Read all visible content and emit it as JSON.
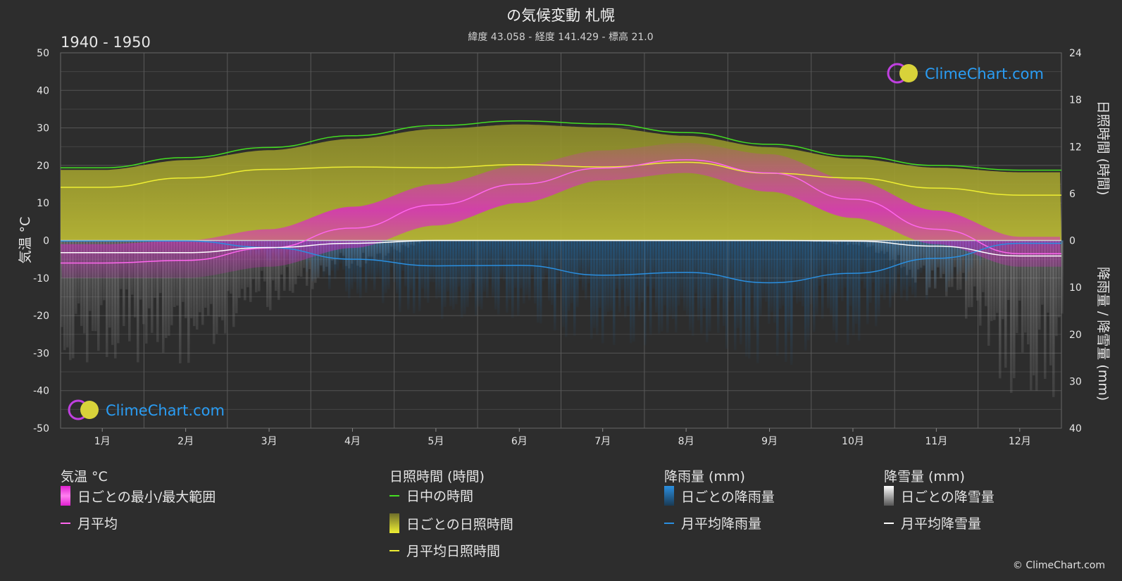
{
  "title": "の気候変動 札幌",
  "subtitle": "緯度 43.058 - 経度 141.429 - 標高 21.0",
  "period": "1940 - 1950",
  "left_axis_label": "気温 °C",
  "right_axis_label_top": "日照時間 (時間)",
  "right_axis_label_bottom": "降雨量 / 降雪量 (mm)",
  "watermark": "ClimeChart.com",
  "copyright": "© ClimeChart.com",
  "colors": {
    "background": "#2d2d2d",
    "daylight": "#44dd22",
    "sunshine": "#eeee33",
    "sunshine_band": "#a9a83a",
    "temp_range": "#e020d0",
    "temp_avg": "#ff66ee",
    "rain": "#2a8fe0",
    "snow": "#ffffff",
    "watermark_text": "#2a9df4"
  },
  "chart_data": {
    "type": "line",
    "x": [
      "1月",
      "2月",
      "3月",
      "4月",
      "5月",
      "6月",
      "7月",
      "8月",
      "9月",
      "10月",
      "11月",
      "12月"
    ],
    "left_axis": {
      "label": "気温 °C",
      "range": [
        -50,
        50
      ],
      "ticks": [
        50,
        40,
        30,
        20,
        10,
        0,
        -10,
        -20,
        -30,
        -40,
        -50
      ]
    },
    "right_axis_sunshine": {
      "label": "日照時間 (時間)",
      "range": [
        0,
        24
      ],
      "ticks": [
        24,
        18,
        12,
        6,
        0
      ]
    },
    "right_axis_precip": {
      "label": "降雨量 / 降雪量 (mm)",
      "range": [
        0,
        40
      ],
      "ticks": [
        0,
        10,
        20,
        30,
        40
      ]
    },
    "grid": true,
    "series": [
      {
        "name": "日中の時間",
        "unit": "時間",
        "values": [
          9.3,
          10.6,
          11.9,
          13.4,
          14.7,
          15.3,
          14.9,
          13.8,
          12.3,
          10.8,
          9.6,
          9.0
        ]
      },
      {
        "name": "月平均日照時間",
        "unit": "時間",
        "values": [
          6.8,
          8.0,
          9.1,
          9.4,
          9.3,
          9.7,
          9.4,
          10.0,
          8.6,
          8.0,
          6.7,
          5.8
        ]
      },
      {
        "name": "月平均",
        "unit": "°C",
        "values": [
          -6.0,
          -5.3,
          -2.0,
          3.3,
          9.5,
          15.0,
          19.3,
          21.5,
          18.0,
          11.0,
          3.0,
          -3.5
        ]
      },
      {
        "name": "月平均降雨量",
        "unit": "mm",
        "values": [
          0.1,
          0.1,
          1.5,
          4.0,
          5.4,
          5.3,
          7.4,
          6.8,
          9.0,
          7.0,
          3.8,
          0.6
        ]
      },
      {
        "name": "月平均降雪量",
        "unit": "mm",
        "values": [
          2.6,
          2.6,
          1.5,
          0.6,
          0.0,
          0.0,
          0.0,
          0.0,
          0.0,
          0.1,
          1.2,
          3.3
        ]
      }
    ],
    "daily_temp_range_approx": {
      "min": [
        -10,
        -10,
        -7,
        -2,
        4,
        10,
        16,
        18,
        13,
        6,
        -1,
        -7
      ],
      "max": [
        -1,
        0,
        3,
        9,
        15,
        20,
        24,
        26,
        23,
        16,
        8,
        1
      ]
    }
  },
  "legend": {
    "temperature": {
      "title": "気温 °C",
      "items": [
        "日ごとの最小/最大範囲",
        "月平均"
      ]
    },
    "sunshine": {
      "title": "日照時間 (時間)",
      "items": [
        "日中の時間",
        "日ごとの日照時間",
        "月平均日照時間"
      ]
    },
    "rain": {
      "title": "降雨量 (mm)",
      "items": [
        "日ごとの降雨量",
        "月平均降雨量"
      ]
    },
    "snow": {
      "title": "降雪量 (mm)",
      "items": [
        "日ごとの降雪量",
        "月平均降雪量"
      ]
    }
  }
}
